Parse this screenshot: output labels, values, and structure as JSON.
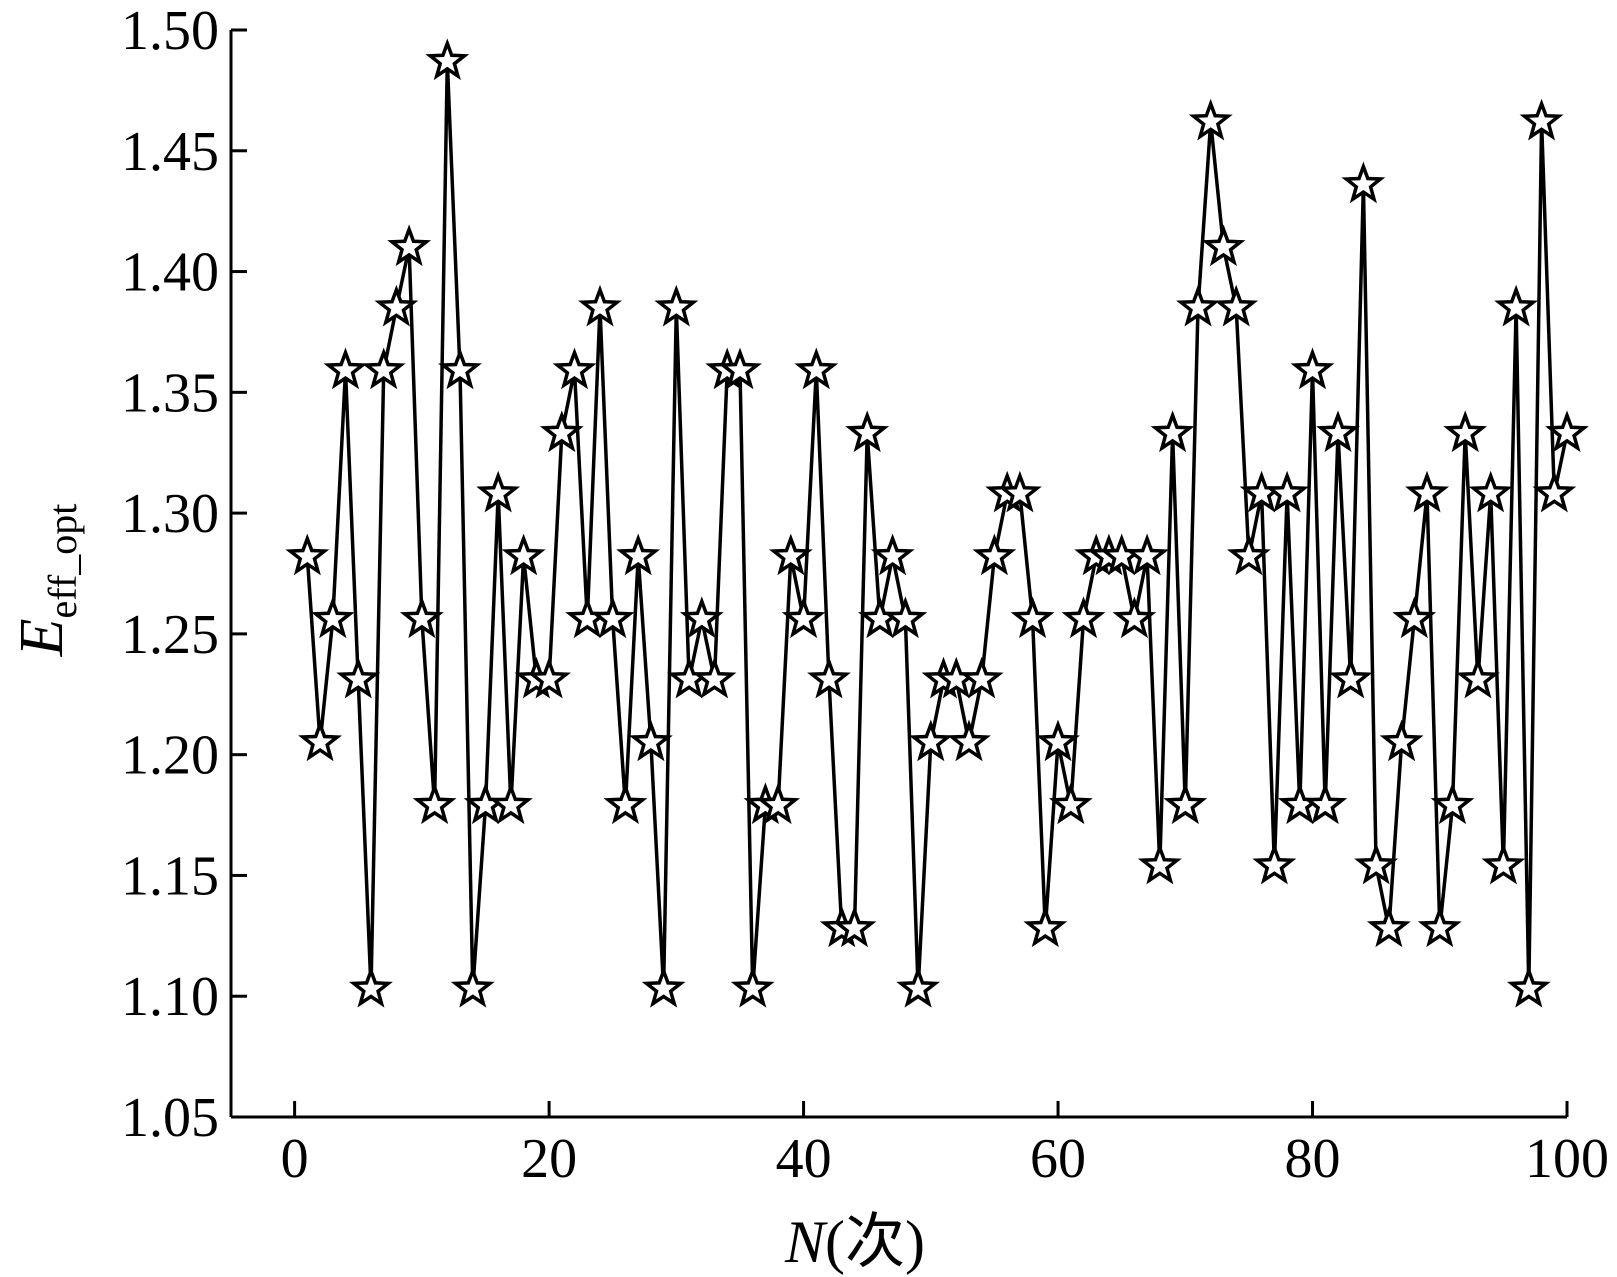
{
  "chart_data": {
    "type": "line",
    "marker": "star",
    "line_color": "#000000",
    "xlabel_var": "N",
    "xlabel_unit": "(次)",
    "ylabel_var": "E",
    "ylabel_sub": "eff_opt",
    "xlim": [
      -5,
      100
    ],
    "ylim": [
      1.05,
      1.5
    ],
    "xticks": [
      0,
      20,
      40,
      60,
      80,
      100
    ],
    "xtick_labels": [
      "0",
      "20",
      "40",
      "60",
      "80",
      "100"
    ],
    "yticks": [
      1.05,
      1.1,
      1.15,
      1.2,
      1.25,
      1.3,
      1.35,
      1.4,
      1.45,
      1.5
    ],
    "ytick_labels": [
      "1.05",
      "1.10",
      "1.15",
      "1.20",
      "1.25",
      "1.30",
      "1.35",
      "1.40",
      "1.45",
      "1.50"
    ],
    "grid": false,
    "series": [
      {
        "x": [
          1,
          2,
          3,
          4,
          5,
          6,
          7,
          8,
          9,
          10,
          11,
          12,
          13,
          14,
          15,
          16,
          17,
          18,
          19,
          20,
          21,
          22,
          23,
          24,
          25,
          26,
          27,
          28,
          29,
          30,
          31,
          32,
          33,
          34,
          35,
          36,
          37,
          38,
          39,
          40,
          41,
          42,
          43,
          44,
          45,
          46,
          47,
          48,
          49,
          50,
          51,
          52,
          53,
          54,
          55,
          56,
          57,
          58,
          59,
          60,
          61,
          62,
          63,
          64,
          65,
          66,
          67,
          68,
          69,
          70,
          71,
          72,
          73,
          74,
          75,
          76,
          77,
          78,
          79,
          80,
          81,
          82,
          83,
          84,
          85,
          86,
          87,
          88,
          89,
          90,
          91,
          92,
          93,
          94,
          95,
          96,
          97,
          98,
          99,
          100
        ],
        "y": [
          1.282,
          1.205,
          1.256,
          1.359,
          1.231,
          1.103,
          1.359,
          1.385,
          1.41,
          1.256,
          1.179,
          1.487,
          1.359,
          1.103,
          1.179,
          1.308,
          1.179,
          1.282,
          1.231,
          1.231,
          1.333,
          1.359,
          1.256,
          1.385,
          1.256,
          1.179,
          1.282,
          1.205,
          1.103,
          1.385,
          1.231,
          1.256,
          1.231,
          1.359,
          1.359,
          1.103,
          1.179,
          1.179,
          1.282,
          1.256,
          1.359,
          1.231,
          1.128,
          1.128,
          1.333,
          1.256,
          1.282,
          1.256,
          1.103,
          1.205,
          1.231,
          1.231,
          1.205,
          1.231,
          1.282,
          1.308,
          1.308,
          1.256,
          1.128,
          1.205,
          1.179,
          1.256,
          1.282,
          1.282,
          1.282,
          1.256,
          1.282,
          1.154,
          1.333,
          1.179,
          1.385,
          1.462,
          1.41,
          1.385,
          1.282,
          1.308,
          1.154,
          1.308,
          1.179,
          1.359,
          1.179,
          1.333,
          1.231,
          1.436,
          1.154,
          1.128,
          1.205,
          1.256,
          1.308,
          1.128,
          1.179,
          1.333,
          1.231,
          1.308,
          1.154,
          1.385,
          1.103,
          1.462,
          1.308,
          1.333
        ]
      }
    ]
  }
}
